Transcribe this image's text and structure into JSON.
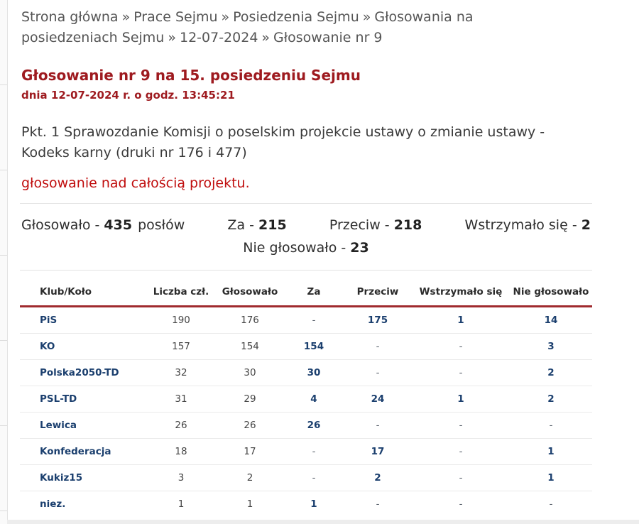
{
  "colors": {
    "title_red": "#9e1a1f",
    "subject_red": "#c00d0d",
    "table_border_red": "#a02a2e",
    "navy": "#1b3f6e",
    "breadcrumb_gray": "#555555"
  },
  "breadcrumb": {
    "separator": "»",
    "items": [
      "Strona główna",
      "Prace Sejmu",
      "Posiedzenia Sejmu",
      "Głosowania na posiedzeniach Sejmu",
      "12-07-2024",
      "Głosowanie nr 9"
    ]
  },
  "header": {
    "title": "Głosowanie nr 9 na 15. posiedzeniu Sejmu",
    "datetime": "dnia 12-07-2024 r. o godz. 13:45:21"
  },
  "topic": {
    "description": "Pkt. 1 Sprawozdanie Komisji o poselskim projekcie ustawy o zmianie ustawy - Kodeks karny (druki nr 176 i 477)",
    "subject": "głosowanie nad całością projektu."
  },
  "summary": {
    "items": [
      {
        "label": "Głosowało -",
        "value": "435",
        "suffix": "posłów"
      },
      {
        "label": "Za -",
        "value": "215",
        "suffix": ""
      },
      {
        "label": "Przeciw -",
        "value": "218",
        "suffix": ""
      },
      {
        "label": "Wstrzymało się -",
        "value": "2",
        "suffix": ""
      }
    ],
    "line2": {
      "label": "Nie głosowało -",
      "value": "23"
    }
  },
  "table": {
    "columns": [
      "Klub/Koło",
      "Liczba czł.",
      "Głosowało",
      "Za",
      "Przeciw",
      "Wstrzymało się",
      "Nie głosowało"
    ],
    "rows": [
      {
        "club": "PiS",
        "members": "190",
        "voted": "176",
        "for": "-",
        "against": "175",
        "abstained": "1",
        "not_voting": "14"
      },
      {
        "club": "KO",
        "members": "157",
        "voted": "154",
        "for": "154",
        "against": "-",
        "abstained": "-",
        "not_voting": "3"
      },
      {
        "club": "Polska2050-TD",
        "members": "32",
        "voted": "30",
        "for": "30",
        "against": "-",
        "abstained": "-",
        "not_voting": "2"
      },
      {
        "club": "PSL-TD",
        "members": "31",
        "voted": "29",
        "for": "4",
        "against": "24",
        "abstained": "1",
        "not_voting": "2"
      },
      {
        "club": "Lewica",
        "members": "26",
        "voted": "26",
        "for": "26",
        "against": "-",
        "abstained": "-",
        "not_voting": "-"
      },
      {
        "club": "Konfederacja",
        "members": "18",
        "voted": "17",
        "for": "-",
        "against": "17",
        "abstained": "-",
        "not_voting": "1"
      },
      {
        "club": "Kukiz15",
        "members": "3",
        "voted": "2",
        "for": "-",
        "against": "2",
        "abstained": "-",
        "not_voting": "1"
      },
      {
        "club": "niez.",
        "members": "1",
        "voted": "1",
        "for": "1",
        "against": "-",
        "abstained": "-",
        "not_voting": "-"
      }
    ]
  }
}
